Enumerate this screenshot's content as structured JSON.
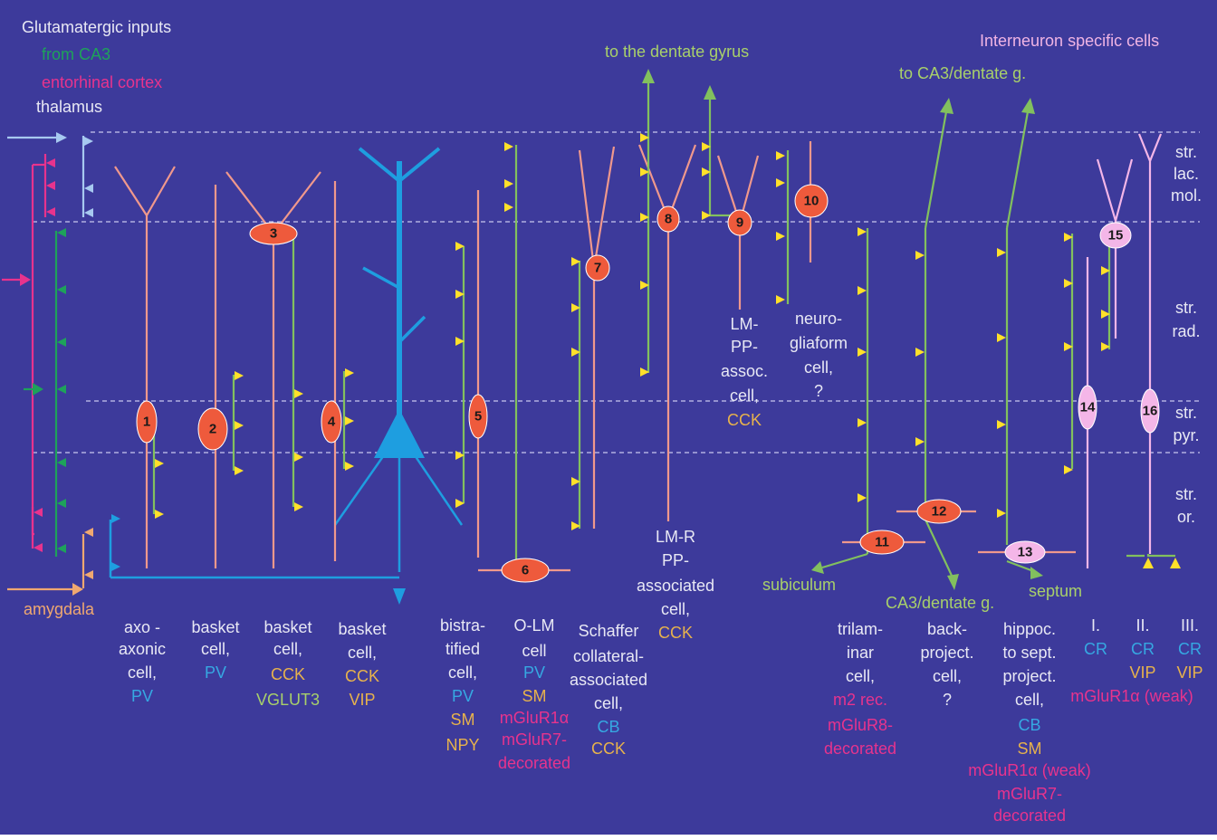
{
  "inputs": {
    "title": "Glutamatergic inputs",
    "ca3": "from CA3",
    "entorhinal": "entorhinal cortex",
    "thalamus": "thalamus",
    "amygdala": "amygdala"
  },
  "targets": {
    "to_dentate_gyrus": "to the dentate gyrus",
    "to_ca3_dentate": "to CA3/dentate g.",
    "interneuron_specific": "Interneuron specific cells",
    "subiculum": "subiculum",
    "ca3_dentate_bottom": "CA3/dentate g.",
    "septum": "septum"
  },
  "layers": [
    {
      "l1": "str.",
      "l2": "lac.",
      "l3": "mol."
    },
    {
      "l1": "str.",
      "l2": "rad."
    },
    {
      "l1": "str.",
      "l2": "pyr."
    },
    {
      "l1": "str.",
      "l2": "or."
    }
  ],
  "cells": [
    {
      "num": "1"
    },
    {
      "num": "2"
    },
    {
      "num": "3"
    },
    {
      "num": "4"
    },
    {
      "num": "5"
    },
    {
      "num": "6"
    },
    {
      "num": "7"
    },
    {
      "num": "8"
    },
    {
      "num": "9"
    },
    {
      "num": "10"
    },
    {
      "num": "11"
    },
    {
      "num": "12"
    },
    {
      "num": "13"
    },
    {
      "num": "14"
    },
    {
      "num": "15"
    },
    {
      "num": "16"
    }
  ],
  "descriptions": {
    "axoaxonic": [
      "axo -",
      "axonic",
      "cell,",
      "PV"
    ],
    "basket_pv": [
      "basket",
      "cell,",
      "PV"
    ],
    "basket_cck": [
      "basket",
      "cell,",
      "CCK",
      "VGLUT3"
    ],
    "basket_vip": [
      "basket",
      "cell,",
      "CCK",
      "VIP"
    ],
    "bistratified": [
      "bistra-",
      "tified",
      "cell,",
      "PV",
      "SM",
      "NPY"
    ],
    "olm": [
      "O-LM",
      "cell",
      "PV",
      "SM",
      "mGluR1α",
      "mGluR7-",
      "decorated"
    ],
    "schaffer": [
      "Schaffer",
      "collateral-",
      "associated",
      "cell,",
      "CB",
      "CCK"
    ],
    "lmr": [
      "LM-R",
      "PP-",
      "associated",
      "cell,",
      "CCK"
    ],
    "lmpp": [
      "LM-",
      "PP-",
      "assoc.",
      "cell,",
      "CCK"
    ],
    "ngf": [
      "neuro-",
      "gliaform",
      "cell,",
      "?"
    ],
    "trilaminar": [
      "trilam-",
      "inar",
      "cell,",
      "m2 rec.",
      "mGluR8-",
      "decorated"
    ],
    "backproject": [
      "back-",
      "project.",
      "cell,",
      "?"
    ],
    "hipposept": [
      "hippoc.",
      "to sept.",
      "project.",
      "cell,",
      "CB",
      "SM",
      "mGluR1α (weak)",
      "mGluR7-",
      "decorated"
    ],
    "is1": [
      "I.",
      "CR"
    ],
    "is2": [
      "II.",
      "CR",
      "VIP"
    ],
    "is3": [
      "III.",
      "CR",
      "VIP"
    ],
    "is_shared": "mGluR1α (weak)"
  },
  "colors": {
    "background": "#3d3a9b",
    "interneuron": "#ee5a3c",
    "is_interneuron": "#f4b6e8",
    "pyramidal": "#1e9ee0",
    "axon": "#82c05e",
    "terminal": "#ffe02a",
    "ca3_input": "#1ea25a",
    "entorhinal_input": "#e8338d",
    "thalamus_input": "#a7c9f0",
    "amygdala_input": "#f0a870"
  }
}
